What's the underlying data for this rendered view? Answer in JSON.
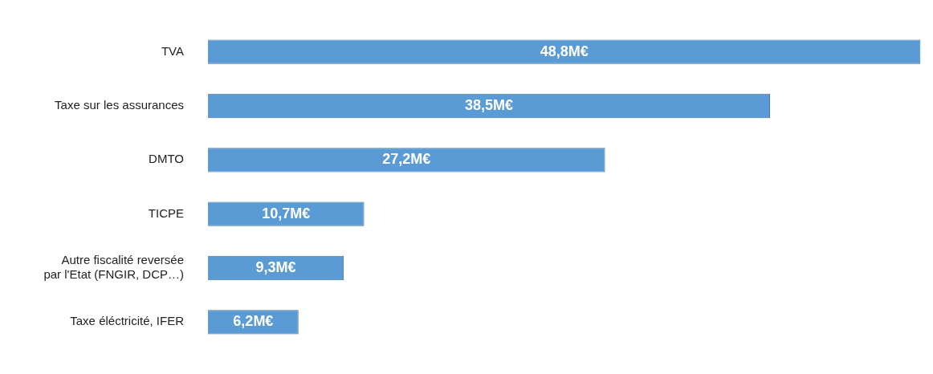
{
  "chart_data": {
    "type": "bar",
    "orientation": "horizontal",
    "categories": [
      "TVA",
      "Taxe sur les assurances",
      "DMTO",
      "TICPE",
      "Autre fiscalité reversée par l'Etat (FNGIR, DCP…)",
      "Taxe éléctricité, IFER"
    ],
    "values": [
      48.8,
      38.5,
      27.2,
      10.7,
      9.3,
      6.2
    ],
    "value_labels": [
      "48,8M€",
      "38,5M€",
      "27,2M€",
      "10,7M€",
      "9,3M€",
      "6,2M€"
    ],
    "color": "#5b9bd5",
    "xlim": [
      0,
      49
    ],
    "tick_labels": "y"
  }
}
